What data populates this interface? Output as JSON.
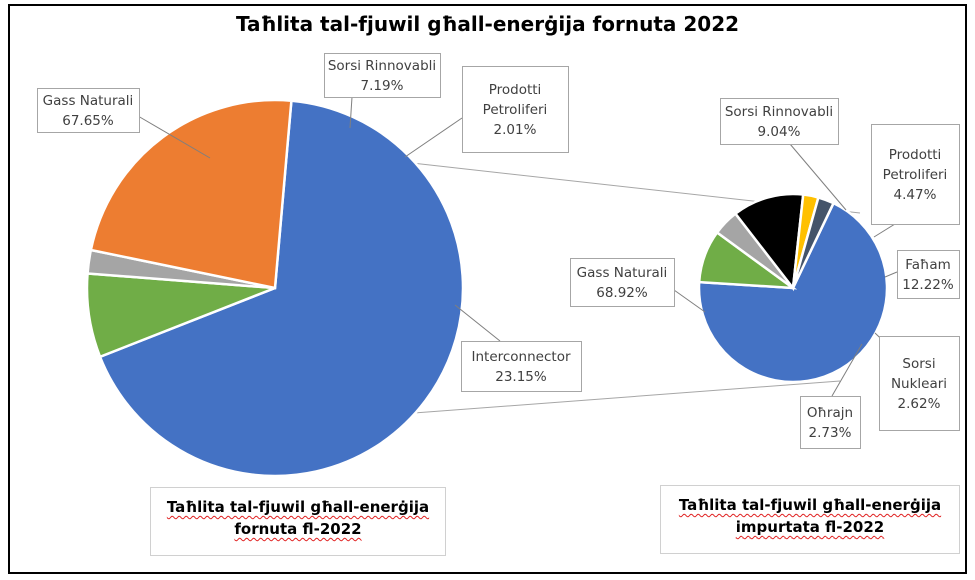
{
  "title": "Taħlita tal-fjuwil għall-enerġija fornuta 2022",
  "captions": {
    "left": [
      "Taħlita tal-fjuwil għall-enerġija",
      "fornuta fl-2022"
    ],
    "right": [
      "Taħlita tal-fjuwil għall-enerġija",
      "impurtata fl-2022"
    ]
  },
  "chart_data": [
    {
      "type": "pie",
      "title": "Taħlita tal-fjuwil għall-enerġija fornuta fl-2022",
      "slices": [
        {
          "label": "Gass Naturali",
          "value": 67.65,
          "display": "67.65%",
          "color": "#4472C4"
        },
        {
          "label": "Sorsi Rinnovabli",
          "value": 7.19,
          "display": "7.19%",
          "color": "#70AD47"
        },
        {
          "label": "Prodotti Petroliferi",
          "value": 2.01,
          "display": "2.01%",
          "color": "#A5A5A5"
        },
        {
          "label": "Interconnector",
          "value": 23.15,
          "display": "23.15%",
          "color": "#ED7D31"
        }
      ]
    },
    {
      "type": "pie",
      "title": "Taħlita tal-fjuwil għall-enerġija impurtata fl-2022",
      "slices": [
        {
          "label": "Gass Naturali",
          "value": 68.92,
          "display": "68.92%",
          "color": "#4472C4"
        },
        {
          "label": "Sorsi Rinnovabli",
          "value": 9.04,
          "display": "9.04%",
          "color": "#70AD47"
        },
        {
          "label": "Prodotti Petroliferi",
          "value": 4.47,
          "display": "4.47%",
          "color": "#A5A5A5"
        },
        {
          "label": "Faħam",
          "value": 12.22,
          "display": "12.22%",
          "color": "#000000"
        },
        {
          "label": "Sorsi Nukleari",
          "value": 2.62,
          "display": "2.62%",
          "color": "#FFC000"
        },
        {
          "label": "Oħrajn",
          "value": 2.73,
          "display": "2.73%",
          "color": "#44546A"
        }
      ]
    }
  ]
}
